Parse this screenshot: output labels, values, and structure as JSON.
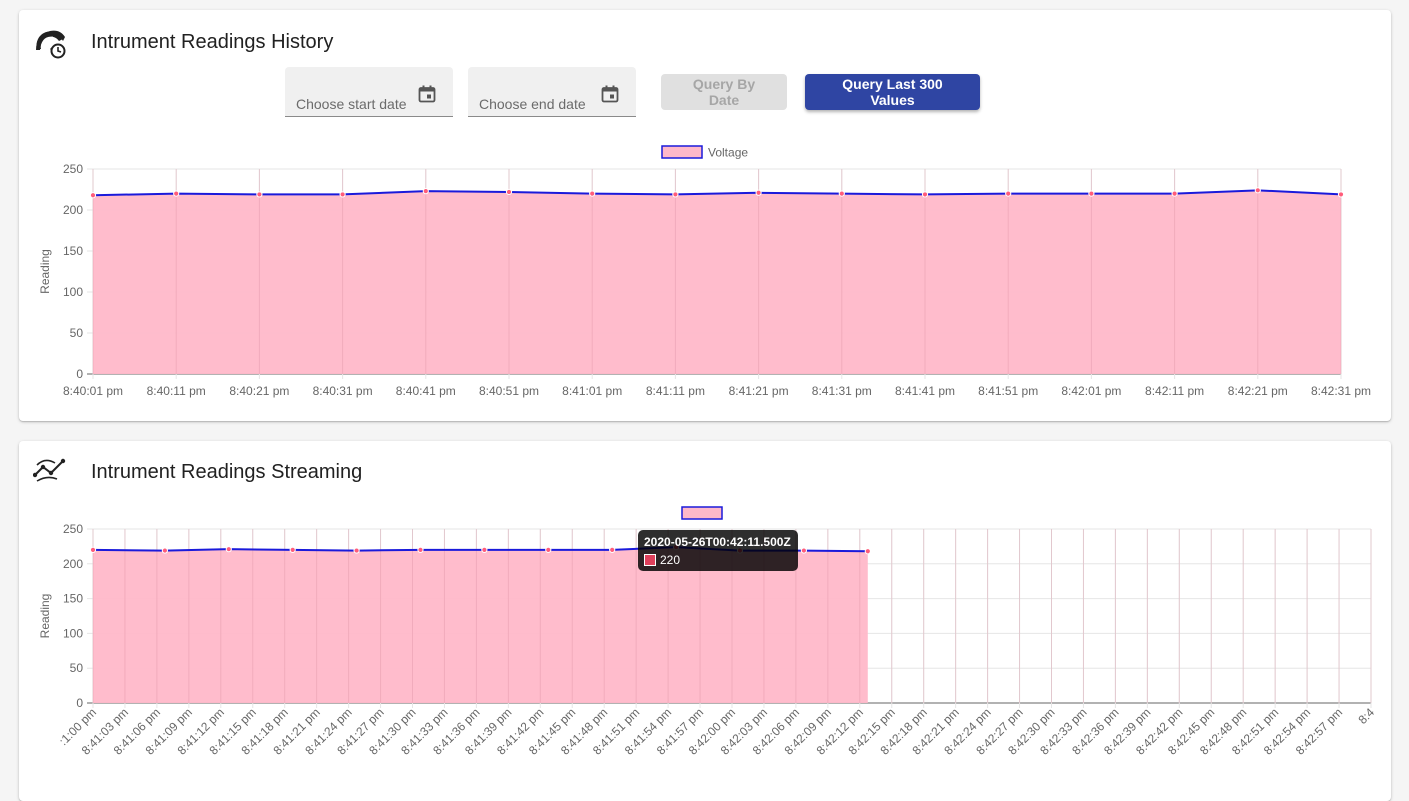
{
  "history": {
    "title": "Intrument Readings History",
    "icon": "gauge-history-icon",
    "start_placeholder": "Choose start date",
    "end_placeholder": "Choose end date",
    "query_date_label": "Query By Date",
    "query_last_label": "Query Last 300 Values"
  },
  "streaming": {
    "title": "Intrument Readings Streaming",
    "icon": "trend-line-icon",
    "tooltip": {
      "title": "2020-05-26T00:42:11.500Z",
      "value": "220"
    }
  },
  "colors": {
    "fill": "#ffb8c9",
    "line": "#1a1adb",
    "point": "#ff5c7a",
    "button_primary": "#2f45a3"
  },
  "chart_data": [
    {
      "type": "area",
      "legend": [
        "Voltage"
      ],
      "ylabel": "Reading",
      "ylim": [
        0,
        250
      ],
      "yticks": [
        "0",
        "50",
        "100",
        "150",
        "200",
        "250"
      ],
      "categories": [
        "8:40:01 pm",
        "8:40:11 pm",
        "8:40:21 pm",
        "8:40:31 pm",
        "8:40:41 pm",
        "8:40:51 pm",
        "8:41:01 pm",
        "8:41:11 pm",
        "8:41:21 pm",
        "8:41:31 pm",
        "8:41:41 pm",
        "8:41:51 pm",
        "8:42:01 pm",
        "8:42:11 pm",
        "8:42:21 pm",
        "8:42:31 pm"
      ],
      "series": [
        {
          "name": "Voltage",
          "values": [
            218,
            220,
            219,
            219,
            223,
            222,
            220,
            219,
            221,
            220,
            219,
            220,
            220,
            220,
            224,
            219
          ]
        }
      ]
    },
    {
      "type": "area",
      "legend": [
        ""
      ],
      "ylabel": "Reading",
      "ylim": [
        0,
        250
      ],
      "yticks": [
        "0",
        "50",
        "100",
        "150",
        "200",
        "250"
      ],
      "xticks": [
        ":1:00 pm",
        "8:41:03 pm",
        "8:41:06 pm",
        "8:41:09 pm",
        "8:41:12 pm",
        "8:41:15 pm",
        "8:41:18 pm",
        "8:41:21 pm",
        "8:41:24 pm",
        "8:41:27 pm",
        "8:41:30 pm",
        "8:41:33 pm",
        "8:41:36 pm",
        "8:41:39 pm",
        "8:41:42 pm",
        "8:41:45 pm",
        "8:41:48 pm",
        "8:41:51 pm",
        "8:41:54 pm",
        "8:41:57 pm",
        "8:42:00 pm",
        "8:42:03 pm",
        "8:42:06 pm",
        "8:42:09 pm",
        "8:42:12 pm",
        "8:42:15 pm",
        "8:42:18 pm",
        "8:42:21 pm",
        "8:42:24 pm",
        "8:42:27 pm",
        "8:42:30 pm",
        "8:42:33 pm",
        "8:42:36 pm",
        "8:42:39 pm",
        "8:42:42 pm",
        "8:42:45 pm",
        "8:42:48 pm",
        "8:42:51 pm",
        "8:42:54 pm",
        "8:42:57 pm",
        "8:4"
      ],
      "series": [
        {
          "name": "",
          "points": [
            [
              0,
              220
            ],
            [
              2.25,
              219
            ],
            [
              4.25,
              221
            ],
            [
              6.25,
              220
            ],
            [
              8.25,
              219
            ],
            [
              10.25,
              220
            ],
            [
              12.25,
              220
            ],
            [
              14.25,
              220
            ],
            [
              16.25,
              220
            ],
            [
              18.25,
              224
            ],
            [
              20.25,
              219
            ],
            [
              22.25,
              219
            ],
            [
              24.25,
              218
            ]
          ]
        }
      ]
    }
  ]
}
